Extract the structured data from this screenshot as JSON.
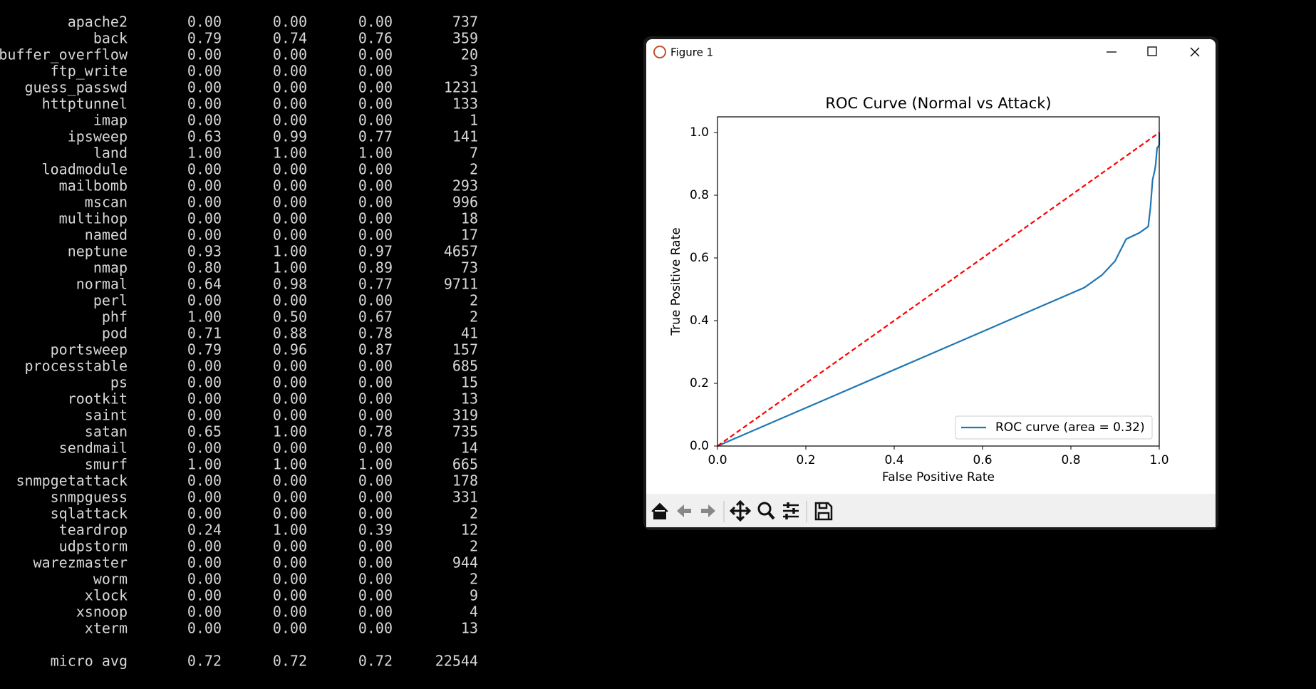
{
  "terminal": {
    "rows": [
      [
        "apache2",
        "0.00",
        "0.00",
        "0.00",
        "737"
      ],
      [
        "back",
        "0.79",
        "0.74",
        "0.76",
        "359"
      ],
      [
        "buffer_overflow",
        "0.00",
        "0.00",
        "0.00",
        "20"
      ],
      [
        "ftp_write",
        "0.00",
        "0.00",
        "0.00",
        "3"
      ],
      [
        "guess_passwd",
        "0.00",
        "0.00",
        "0.00",
        "1231"
      ],
      [
        "httptunnel",
        "0.00",
        "0.00",
        "0.00",
        "133"
      ],
      [
        "imap",
        "0.00",
        "0.00",
        "0.00",
        "1"
      ],
      [
        "ipsweep",
        "0.63",
        "0.99",
        "0.77",
        "141"
      ],
      [
        "land",
        "1.00",
        "1.00",
        "1.00",
        "7"
      ],
      [
        "loadmodule",
        "0.00",
        "0.00",
        "0.00",
        "2"
      ],
      [
        "mailbomb",
        "0.00",
        "0.00",
        "0.00",
        "293"
      ],
      [
        "mscan",
        "0.00",
        "0.00",
        "0.00",
        "996"
      ],
      [
        "multihop",
        "0.00",
        "0.00",
        "0.00",
        "18"
      ],
      [
        "named",
        "0.00",
        "0.00",
        "0.00",
        "17"
      ],
      [
        "neptune",
        "0.93",
        "1.00",
        "0.97",
        "4657"
      ],
      [
        "nmap",
        "0.80",
        "1.00",
        "0.89",
        "73"
      ],
      [
        "normal",
        "0.64",
        "0.98",
        "0.77",
        "9711"
      ],
      [
        "perl",
        "0.00",
        "0.00",
        "0.00",
        "2"
      ],
      [
        "phf",
        "1.00",
        "0.50",
        "0.67",
        "2"
      ],
      [
        "pod",
        "0.71",
        "0.88",
        "0.78",
        "41"
      ],
      [
        "portsweep",
        "0.79",
        "0.96",
        "0.87",
        "157"
      ],
      [
        "processtable",
        "0.00",
        "0.00",
        "0.00",
        "685"
      ],
      [
        "ps",
        "0.00",
        "0.00",
        "0.00",
        "15"
      ],
      [
        "rootkit",
        "0.00",
        "0.00",
        "0.00",
        "13"
      ],
      [
        "saint",
        "0.00",
        "0.00",
        "0.00",
        "319"
      ],
      [
        "satan",
        "0.65",
        "1.00",
        "0.78",
        "735"
      ],
      [
        "sendmail",
        "0.00",
        "0.00",
        "0.00",
        "14"
      ],
      [
        "smurf",
        "1.00",
        "1.00",
        "1.00",
        "665"
      ],
      [
        "snmpgetattack",
        "0.00",
        "0.00",
        "0.00",
        "178"
      ],
      [
        "snmpguess",
        "0.00",
        "0.00",
        "0.00",
        "331"
      ],
      [
        "sqlattack",
        "0.00",
        "0.00",
        "0.00",
        "2"
      ],
      [
        "teardrop",
        "0.24",
        "1.00",
        "0.39",
        "12"
      ],
      [
        "udpstorm",
        "0.00",
        "0.00",
        "0.00",
        "2"
      ],
      [
        "warezmaster",
        "0.00",
        "0.00",
        "0.00",
        "944"
      ],
      [
        "worm",
        "0.00",
        "0.00",
        "0.00",
        "2"
      ],
      [
        "xlock",
        "0.00",
        "0.00",
        "0.00",
        "9"
      ],
      [
        "xsnoop",
        "0.00",
        "0.00",
        "0.00",
        "4"
      ],
      [
        "xterm",
        "0.00",
        "0.00",
        "0.00",
        "13"
      ]
    ],
    "summary": [
      "micro avg",
      "0.72",
      "0.72",
      "0.72",
      "22544"
    ]
  },
  "window": {
    "title": "Figure 1"
  },
  "chart_data": {
    "type": "line",
    "title": "ROC Curve (Normal vs Attack)",
    "xlabel": "False Positive Rate",
    "ylabel": "True Positive Rate",
    "xlim": [
      0,
      1
    ],
    "ylim": [
      0,
      1.05
    ],
    "xticks": [
      {
        "value": 0,
        "label": "0.0"
      },
      0.2,
      0.4,
      0.6,
      0.8,
      {
        "value": 1,
        "label": "1.0"
      }
    ],
    "yticks": [
      {
        "value": 0,
        "label": "0.0"
      },
      0.2,
      0.4,
      0.6,
      0.8,
      {
        "value": 1,
        "label": "1.0"
      }
    ],
    "grid": false,
    "legend": "lower right",
    "series": [
      {
        "name": "ROC curve (area = 0.32)",
        "color": "#1f77b4",
        "linestyle": "solid",
        "x": [
          0,
          0.83,
          0.87,
          0.9,
          0.925,
          0.955,
          0.975,
          0.98,
          0.985,
          0.99,
          0.992,
          0.995,
          1.0,
          1.0
        ],
        "values": [
          0,
          0.505,
          0.545,
          0.59,
          0.66,
          0.68,
          0.7,
          0.76,
          0.85,
          0.88,
          0.9,
          0.95,
          0.96,
          1.0
        ]
      },
      {
        "color": "#ff0000",
        "linestyle": "dashed",
        "x": [
          0,
          1
        ],
        "values": [
          0,
          1
        ]
      }
    ]
  }
}
